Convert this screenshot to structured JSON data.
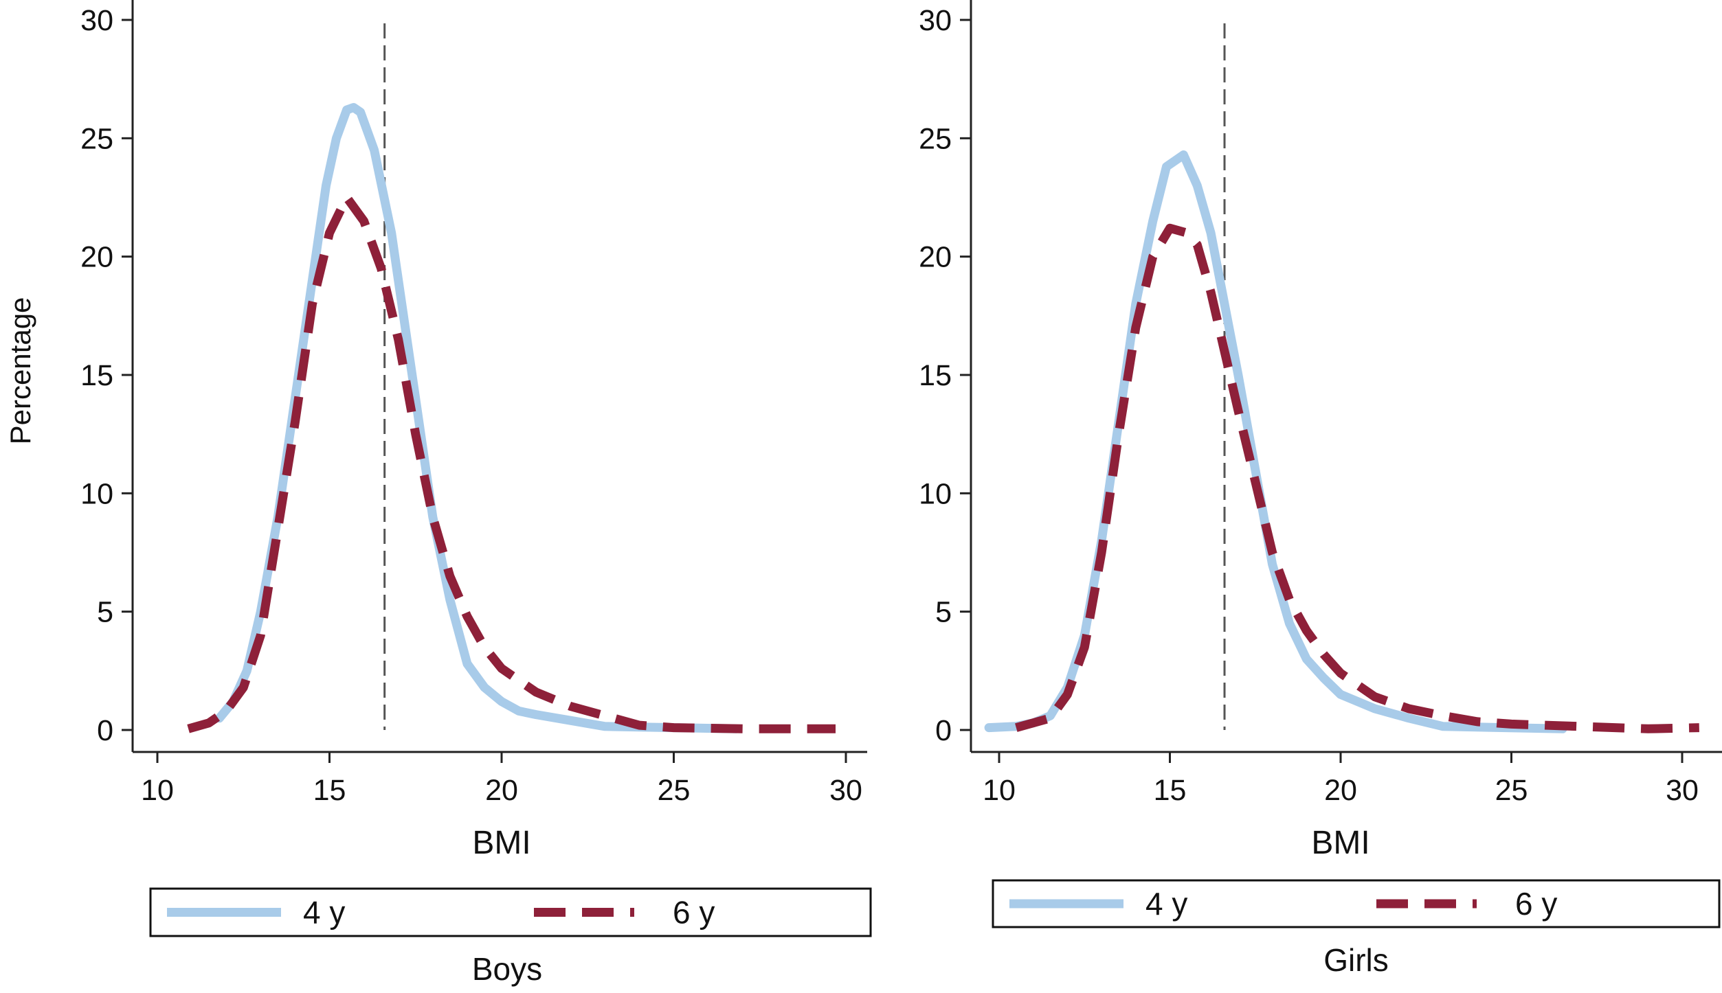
{
  "colors": {
    "y4": "#a8cbe9",
    "y6": "#8e2039",
    "reference_line": "#555555"
  },
  "chart_data": [
    {
      "type": "line",
      "panel_label": "Boys",
      "xlabel": "BMI",
      "ylabel": "Percentage",
      "xlim": [
        10,
        30
      ],
      "ylim": [
        0,
        30
      ],
      "xticks": [
        "10",
        "15",
        "20",
        "25",
        "30"
      ],
      "yticks": [
        "0",
        "5",
        "10",
        "15",
        "20",
        "25",
        "30"
      ],
      "grid": false,
      "legend_position": "bottom",
      "reference_line_x": 16.6,
      "series": [
        {
          "name": "4 y",
          "style": "solid",
          "points": [
            [
              11.8,
              0.5
            ],
            [
              12.2,
              1.2
            ],
            [
              12.6,
              2.5
            ],
            [
              13,
              5
            ],
            [
              13.5,
              9
            ],
            [
              14,
              14
            ],
            [
              14.5,
              19
            ],
            [
              14.9,
              23
            ],
            [
              15.2,
              25
            ],
            [
              15.5,
              26.2
            ],
            [
              15.7,
              26.3
            ],
            [
              15.9,
              26.1
            ],
            [
              16.3,
              24.5
            ],
            [
              16.8,
              21
            ],
            [
              17,
              19
            ],
            [
              17.5,
              14
            ],
            [
              18,
              9
            ],
            [
              18.5,
              5.5
            ],
            [
              19,
              2.8
            ],
            [
              19.5,
              1.8
            ],
            [
              20,
              1.2
            ],
            [
              20.5,
              0.8
            ],
            [
              21,
              0.65
            ],
            [
              22,
              0.4
            ],
            [
              23,
              0.15
            ],
            [
              25,
              0.1
            ],
            [
              26.8,
              0.05
            ]
          ]
        },
        {
          "name": "6 y",
          "style": "dashed",
          "points": [
            [
              10.9,
              0.05
            ],
            [
              11.5,
              0.3
            ],
            [
              12,
              0.8
            ],
            [
              12.5,
              1.8
            ],
            [
              13,
              4
            ],
            [
              13.5,
              8.5
            ],
            [
              14,
              13
            ],
            [
              14.5,
              18
            ],
            [
              15,
              21
            ],
            [
              15.5,
              22.5
            ],
            [
              16,
              21.5
            ],
            [
              16.5,
              19.5
            ],
            [
              17,
              16.5
            ],
            [
              17.5,
              12.5
            ],
            [
              18,
              9
            ],
            [
              18.5,
              6.5
            ],
            [
              19,
              4.8
            ],
            [
              19.5,
              3.5
            ],
            [
              20,
              2.6
            ],
            [
              21,
              1.6
            ],
            [
              22,
              1
            ],
            [
              23,
              0.6
            ],
            [
              24,
              0.2
            ],
            [
              25,
              0.1
            ],
            [
              27,
              0.05
            ],
            [
              29.7,
              0.05
            ]
          ]
        }
      ]
    },
    {
      "type": "line",
      "panel_label": "Girls",
      "xlabel": "BMI",
      "ylabel": "",
      "xlim": [
        10,
        30
      ],
      "ylim": [
        0,
        30
      ],
      "xticks": [
        "10",
        "15",
        "20",
        "25",
        "30"
      ],
      "yticks": [
        "0",
        "5",
        "10",
        "15",
        "20",
        "25",
        "30"
      ],
      "grid": false,
      "legend_position": "bottom",
      "reference_line_x": 16.6,
      "series": [
        {
          "name": "4 y",
          "style": "solid",
          "points": [
            [
              9.7,
              0.1
            ],
            [
              10.5,
              0.15
            ],
            [
              11,
              0.3
            ],
            [
              11.5,
              0.6
            ],
            [
              12,
              1.8
            ],
            [
              12.5,
              4
            ],
            [
              13,
              8
            ],
            [
              13.5,
              13
            ],
            [
              14,
              18
            ],
            [
              14.5,
              21.5
            ],
            [
              14.9,
              23.8
            ],
            [
              15.4,
              24.3
            ],
            [
              15.8,
              23
            ],
            [
              16.2,
              21
            ],
            [
              16.6,
              18
            ],
            [
              17,
              15
            ],
            [
              17.5,
              11
            ],
            [
              18,
              7
            ],
            [
              18.5,
              4.5
            ],
            [
              19,
              3
            ],
            [
              19.5,
              2.2
            ],
            [
              20,
              1.5
            ],
            [
              21,
              0.9
            ],
            [
              22,
              0.5
            ],
            [
              23,
              0.15
            ],
            [
              26.5,
              0.05
            ]
          ]
        },
        {
          "name": "6 y",
          "style": "dashed",
          "points": [
            [
              10.5,
              0.1
            ],
            [
              11.5,
              0.5
            ],
            [
              12,
              1.5
            ],
            [
              12.5,
              3.5
            ],
            [
              13,
              7.5
            ],
            [
              13.5,
              12.5
            ],
            [
              14,
              17
            ],
            [
              14.5,
              20
            ],
            [
              15,
              21.2
            ],
            [
              15.5,
              21
            ],
            [
              15.8,
              20.5
            ],
            [
              16.2,
              18.5
            ],
            [
              16.6,
              16
            ],
            [
              17,
              13.5
            ],
            [
              17.5,
              10.5
            ],
            [
              18,
              7.5
            ],
            [
              18.5,
              5.5
            ],
            [
              19,
              4.2
            ],
            [
              19.5,
              3.2
            ],
            [
              20,
              2.4
            ],
            [
              21,
              1.4
            ],
            [
              22,
              0.9
            ],
            [
              23,
              0.6
            ],
            [
              24,
              0.35
            ],
            [
              25,
              0.25
            ],
            [
              27,
              0.15
            ],
            [
              29,
              0.05
            ],
            [
              30.5,
              0.1
            ]
          ]
        }
      ]
    }
  ]
}
